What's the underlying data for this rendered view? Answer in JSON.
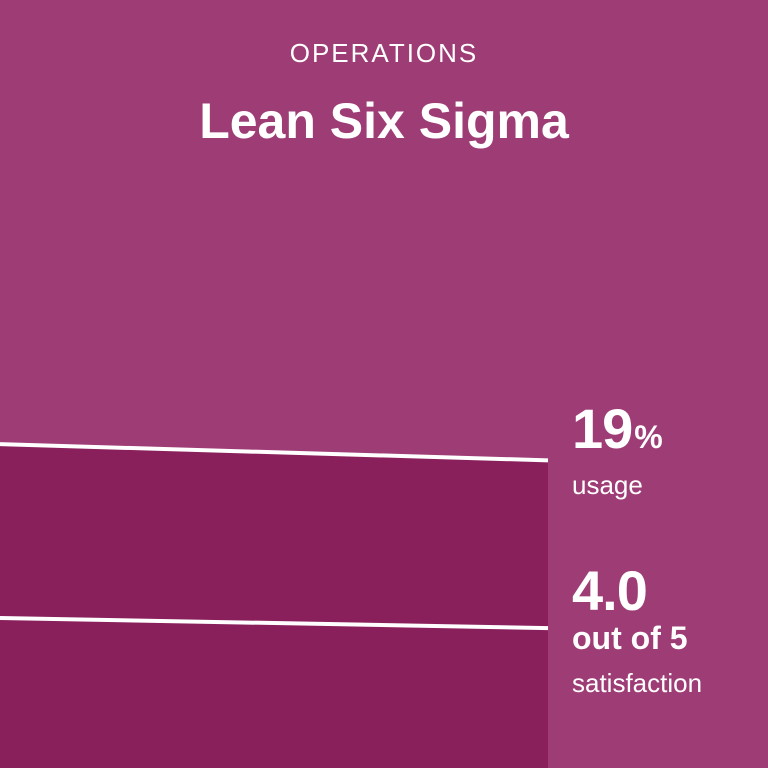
{
  "header": {
    "category": "OPERATIONS",
    "title": "Lean Six Sigma"
  },
  "stats": {
    "usage": {
      "value": "19",
      "unit": "%",
      "label": "usage"
    },
    "satisfaction": {
      "value": "4.0",
      "scale": "out of 5",
      "label": "satisfaction"
    }
  },
  "colors": {
    "background": "#9e3c76",
    "area_fill": "#8a205b",
    "line": "#ffffff",
    "text": "#ffffff"
  },
  "chart_data": {
    "type": "area",
    "title": "Lean Six Sigma",
    "series": [
      {
        "name": "usage",
        "unit": "%",
        "values": [
          20,
          19
        ]
      },
      {
        "name": "satisfaction",
        "unit": "out of 5",
        "values": [
          3.95,
          4.0
        ]
      }
    ],
    "ylim": [
      0,
      100
    ],
    "satisfaction_ylim": [
      1,
      5
    ],
    "grid": false,
    "legend": "none"
  }
}
